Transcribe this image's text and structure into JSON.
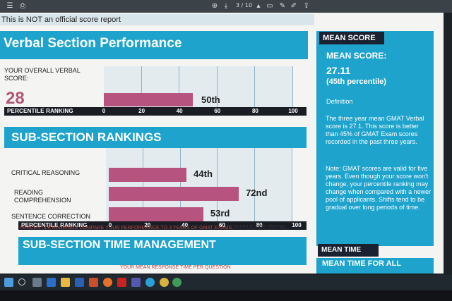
{
  "toolbar": {
    "page_indicator": "3 / 10",
    "icons": [
      "list-icon",
      "print-icon",
      "zoom-in-icon",
      "download-icon",
      "page-up-icon",
      "page-down-icon",
      "comment-icon",
      "pen-icon",
      "highlight-icon",
      "share-icon"
    ]
  },
  "report": {
    "disclaimer": "This is NOT an official score report",
    "verbal": {
      "title": "Verbal Section Performance",
      "overall_label": "YOUR OVERALL VERBAL SCORE:",
      "score": "28",
      "percentile_value": 50,
      "percentile_label": "50th",
      "axis_title": "PERCENTILE RANKING",
      "ticks": [
        "0",
        "20",
        "40",
        "60",
        "80",
        "100"
      ]
    },
    "subsection": {
      "title": "SUB-SECTION RANKINGS",
      "rows": [
        {
          "label": "CRITICAL REASONING",
          "value": 44,
          "value_label": "44th"
        },
        {
          "label": "READING COMPREHENSION",
          "value": 72,
          "value_label": "72nd"
        },
        {
          "label": "SENTENCE CORRECTION",
          "value": 53,
          "value_label": "53rd"
        }
      ],
      "axis_title": "PERCENTILE RANKING",
      "ticks": [
        "0",
        "20",
        "40",
        "60",
        "80",
        "100"
      ],
      "compare_note": "PERCENTILE RANKINGS COMPARE YOUR PERFORMANCE TO 3 YEARS OF GMAT EXAMS.",
      "sample_size": "SAMPLE SIZE: 695794"
    },
    "time_management": {
      "title": "SUB-SECTION TIME MANAGEMENT",
      "response_note": "YOUR MEAN RESPONSE TIME PER QUESTION"
    }
  },
  "side": {
    "header": "MEAN SCORE",
    "mean_title": "MEAN SCORE:",
    "mean_value": "27.11",
    "mean_percentile": "(45th percentile)",
    "definition_label": "Definition",
    "definition_text": "The three year mean GMAT Verbal score is 27.1. This score is better than 45% of GMAT Exam scores recorded in the past three years.",
    "note_text": "Note: GMAT scores are valid for five years. Even though your score won't change, your percentile ranking may change when compared with a newer pool of applicants. Shifts tend to be gradual over long periods of time.",
    "mean_time_header": "MEAN TIME",
    "mean_time_text": "MEAN TIME FOR ALL"
  },
  "colors": {
    "banner": "#1da3cc",
    "bar": "#b6547f",
    "axis_strip": "#1a1d24",
    "score": "#b25476"
  }
}
